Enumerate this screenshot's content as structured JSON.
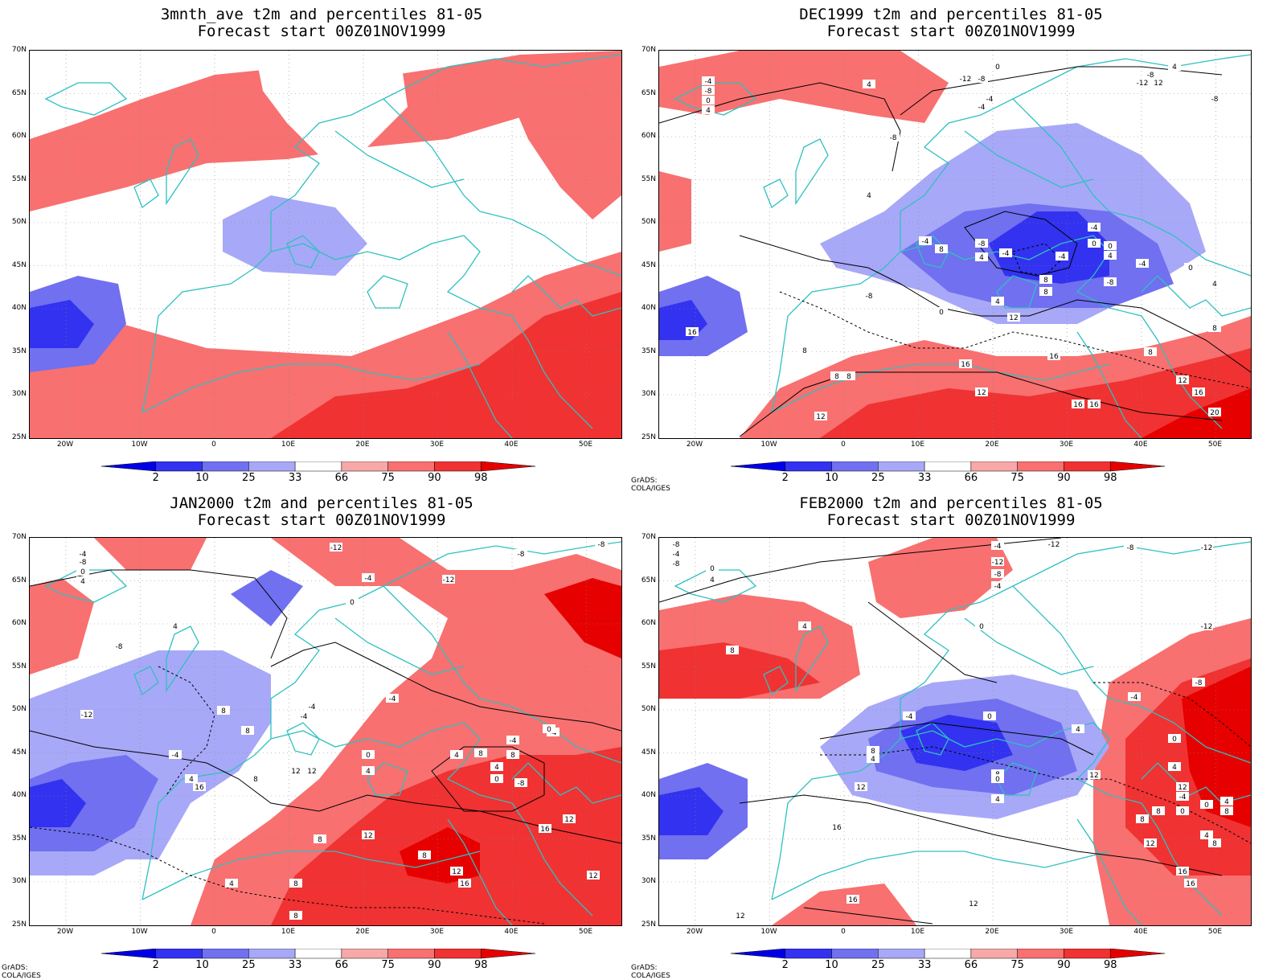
{
  "panels": [
    {
      "id": "3mnth",
      "title_line1": "3mnth_ave t2m and percentiles 81-05",
      "title_line2": "Forecast start 00Z01NOV1999",
      "credit": "",
      "contour_labels": []
    },
    {
      "id": "dec",
      "title_line1": "DEC1999 t2m and percentiles 81-05",
      "title_line2": "Forecast start 00Z01NOV1999",
      "credit": "GrADS: COLA/IGES",
      "contour_labels": [
        "-4",
        "-8",
        "0",
        "4",
        "4",
        "-12",
        "-8",
        "-4",
        "0",
        "4",
        "-12",
        "-8",
        "-4",
        "-8",
        "-12",
        "4",
        "-4",
        "8",
        "-8",
        "0",
        "-4",
        "-4",
        "8",
        "4",
        "8",
        "-8",
        "12",
        "16",
        "8",
        "8",
        "12",
        "16",
        "-4",
        "0",
        "4",
        "8",
        "12",
        "16",
        "20",
        "-8",
        "12",
        "4",
        "0",
        "-8",
        "16",
        "12",
        "16",
        "8",
        "8",
        "12",
        "16",
        "-4",
        "4",
        "0"
      ]
    },
    {
      "id": "jan",
      "title_line1": "JAN2000 t2m and percentiles 81-05",
      "title_line2": "Forecast start 00Z01NOV1999",
      "credit": "GrADS: COLA/IGES",
      "contour_labels": [
        "-4",
        "-8",
        "0",
        "4",
        "-12",
        "-8",
        "-4",
        "0",
        "-12",
        "-8",
        "-12",
        "4",
        "-8",
        "-4",
        "-4",
        "8",
        "-4",
        "12",
        "8",
        "4",
        "0",
        "4",
        "8",
        "-4",
        "8",
        "4",
        "0",
        "-8",
        "-4",
        "0",
        "12",
        "8",
        "12",
        "12",
        "16",
        "4",
        "8",
        "16",
        "-4",
        "4",
        "8",
        "12",
        "16",
        "8",
        "12",
        "8"
      ]
    },
    {
      "id": "feb",
      "title_line1": "FEB2000 t2m and percentiles 81-05",
      "title_line2": "Forecast start 00Z01NOV1999",
      "credit": "GrADS: COLA/IGES",
      "contour_labels": [
        "-8",
        "-4",
        "-8",
        "0",
        "4",
        "-12",
        "-12",
        "-8",
        "-4",
        "-12",
        "-8",
        "-4",
        "0",
        "4",
        "8",
        "0",
        "-4",
        "-12",
        "-8",
        "-4",
        "4",
        "8",
        "0",
        "4",
        "8",
        "4",
        "12",
        "12",
        "0",
        "4",
        "-4",
        "0",
        "4",
        "8",
        "12",
        "8",
        "12",
        "16",
        "16",
        "12",
        "16",
        "8",
        "0",
        "4",
        "8",
        "12",
        "16"
      ]
    }
  ],
  "lat_labels": [
    "70N",
    "65N",
    "60N",
    "55N",
    "50N",
    "45N",
    "40N",
    "35N",
    "30N",
    "25N"
  ],
  "lon_labels": [
    "20W",
    "10W",
    "0",
    "10E",
    "20E",
    "30E",
    "40E",
    "50E"
  ],
  "colorbar": {
    "labels": [
      "2",
      "10",
      "25",
      "33",
      "66",
      "75",
      "90",
      "98"
    ],
    "colors": [
      "#0000e6",
      "#3232f0",
      "#7070f0",
      "#a8a8f8",
      "#ffffff",
      "#f8a8a8",
      "#f87070",
      "#f03232",
      "#e60000"
    ]
  },
  "colors": {
    "coast": "#30c0c0",
    "contour": "#000000"
  }
}
